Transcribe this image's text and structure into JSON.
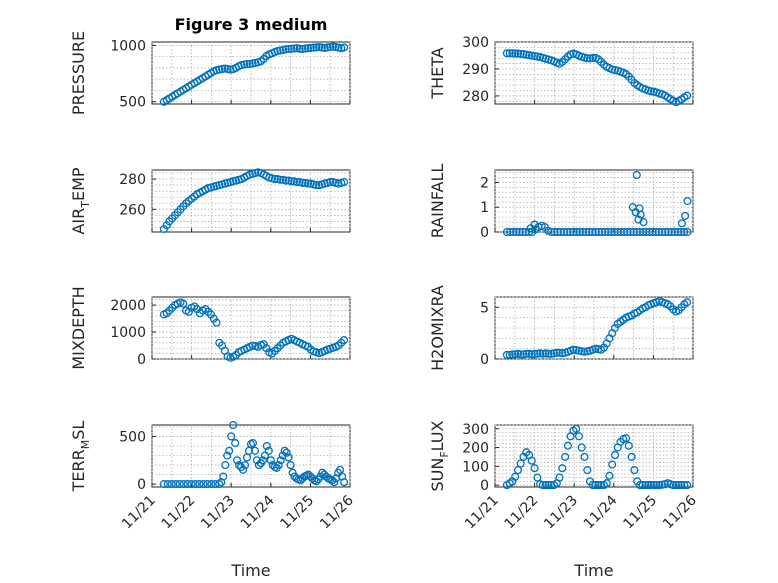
{
  "colors": {
    "marker": "#0072BD"
  },
  "xlabel": "Time",
  "x_ticks": [
    "11/21",
    "11/22",
    "11/23",
    "11/24",
    "11/25",
    "11/26"
  ],
  "chart_data": [
    {
      "type": "scatter",
      "title": "Figure 3 medium",
      "ylabel": "PRESSURE",
      "ylim": [
        480,
        1030
      ],
      "yticks": [
        500,
        1000
      ],
      "grid": true,
      "x": [
        0.3,
        0.37,
        0.44,
        0.51,
        0.58,
        0.65,
        0.72,
        0.79,
        0.86,
        0.93,
        1.0,
        1.07,
        1.14,
        1.21,
        1.28,
        1.35,
        1.42,
        1.49,
        1.56,
        1.63,
        1.7,
        1.77,
        1.84,
        1.91,
        1.98,
        2.05,
        2.12,
        2.19,
        2.26,
        2.33,
        2.4,
        2.47,
        2.54,
        2.61,
        2.68,
        2.75,
        2.82,
        2.89,
        2.96,
        3.03,
        3.1,
        3.17,
        3.24,
        3.31,
        3.38,
        3.45,
        3.52,
        3.59,
        3.66,
        3.73,
        3.8,
        3.87,
        3.94,
        4.01,
        4.08,
        4.15,
        4.22,
        4.29,
        4.36,
        4.43,
        4.5,
        4.57,
        4.64,
        4.71,
        4.78,
        4.85
      ],
      "y": [
        500,
        515,
        530,
        545,
        560,
        575,
        590,
        605,
        620,
        635,
        650,
        665,
        680,
        695,
        710,
        725,
        740,
        755,
        770,
        780,
        785,
        790,
        795,
        790,
        785,
        790,
        800,
        815,
        825,
        830,
        835,
        835,
        840,
        845,
        850,
        860,
        880,
        905,
        920,
        930,
        940,
        950,
        955,
        960,
        965,
        968,
        970,
        972,
        975,
        970,
        968,
        972,
        975,
        978,
        980,
        982,
        985,
        980,
        978,
        982,
        986,
        990,
        985,
        980,
        975,
        982
      ]
    },
    {
      "type": "scatter",
      "ylabel": "THETA",
      "ylim": [
        277,
        300
      ],
      "yticks": [
        280,
        290,
        300
      ],
      "grid": true,
      "x": [
        0.3,
        0.37,
        0.44,
        0.51,
        0.58,
        0.65,
        0.72,
        0.79,
        0.86,
        0.93,
        1.0,
        1.07,
        1.14,
        1.21,
        1.28,
        1.35,
        1.42,
        1.49,
        1.56,
        1.63,
        1.7,
        1.77,
        1.84,
        1.91,
        1.98,
        2.05,
        2.12,
        2.19,
        2.26,
        2.33,
        2.4,
        2.47,
        2.54,
        2.61,
        2.68,
        2.75,
        2.82,
        2.89,
        2.96,
        3.03,
        3.1,
        3.17,
        3.24,
        3.31,
        3.38,
        3.45,
        3.52,
        3.59,
        3.66,
        3.73,
        3.8,
        3.87,
        3.94,
        4.01,
        4.08,
        4.15,
        4.22,
        4.29,
        4.36,
        4.43,
        4.5,
        4.57,
        4.64,
        4.71,
        4.78,
        4.85
      ],
      "y": [
        295.8,
        295.8,
        295.8,
        295.7,
        295.7,
        295.6,
        295.5,
        295.3,
        295.1,
        294.9,
        294.8,
        294.6,
        294.4,
        294.1,
        293.8,
        293.5,
        293.2,
        292.8,
        292.3,
        291.9,
        292.6,
        293.6,
        294.6,
        295.4,
        295.7,
        295.4,
        294.9,
        294.5,
        294.2,
        294.0,
        293.9,
        294.1,
        294.1,
        293.6,
        292.6,
        291.6,
        290.8,
        290.3,
        289.8,
        289.6,
        289.3,
        289.0,
        288.6,
        288.1,
        287.2,
        286.0,
        284.8,
        284.0,
        283.3,
        282.8,
        282.4,
        282.0,
        281.7,
        281.6,
        281.3,
        280.9,
        280.6,
        280.2,
        279.5,
        278.8,
        278.2,
        277.7,
        278.1,
        278.7,
        279.5,
        280.1
      ]
    },
    {
      "type": "scatter",
      "ylabel": "AIR_TEMP",
      "ylim": [
        245,
        286
      ],
      "yticks": [
        260,
        280
      ],
      "grid": true,
      "x": [
        0.3,
        0.37,
        0.44,
        0.51,
        0.58,
        0.65,
        0.72,
        0.79,
        0.86,
        0.93,
        1.0,
        1.07,
        1.14,
        1.21,
        1.28,
        1.35,
        1.42,
        1.49,
        1.56,
        1.63,
        1.7,
        1.77,
        1.84,
        1.91,
        1.98,
        2.05,
        2.12,
        2.19,
        2.26,
        2.33,
        2.4,
        2.47,
        2.54,
        2.61,
        2.68,
        2.75,
        2.82,
        2.89,
        2.96,
        3.03,
        3.1,
        3.17,
        3.24,
        3.31,
        3.38,
        3.45,
        3.52,
        3.59,
        3.66,
        3.73,
        3.8,
        3.87,
        3.94,
        4.01,
        4.08,
        4.15,
        4.22,
        4.29,
        4.36,
        4.43,
        4.5,
        4.57,
        4.64,
        4.71,
        4.78,
        4.85
      ],
      "y": [
        247,
        249.5,
        252,
        254,
        256,
        258,
        260,
        262,
        264,
        265.5,
        267,
        268.5,
        270,
        271,
        272,
        273,
        274,
        274.5,
        275,
        275.5,
        276,
        276.5,
        277,
        277.5,
        278,
        278.5,
        279,
        279.5,
        280,
        281,
        282,
        283,
        283.5,
        284,
        284.5,
        284,
        283,
        282,
        281,
        280.5,
        280,
        280,
        279.5,
        279.5,
        279,
        279,
        278.5,
        278.5,
        278,
        278,
        277.5,
        277.5,
        277,
        277,
        276.5,
        276,
        276,
        276.5,
        277,
        277.5,
        278,
        278,
        277.5,
        277,
        277.5,
        278
      ]
    },
    {
      "type": "scatter",
      "ylabel": "RAINFALL",
      "ylim": [
        0,
        2.5
      ],
      "yticks": [
        0,
        1,
        2
      ],
      "grid": true,
      "x": [
        0.3,
        0.38,
        0.46,
        0.54,
        0.62,
        0.7,
        0.78,
        0.86,
        0.94,
        1.02,
        1.1,
        1.18,
        1.26,
        1.34,
        1.42,
        1.5,
        1.58,
        1.66,
        1.74,
        1.82,
        1.9,
        1.98,
        2.06,
        2.14,
        2.22,
        2.3,
        2.38,
        2.46,
        2.54,
        2.62,
        2.7,
        2.78,
        2.86,
        2.94,
        3.02,
        3.1,
        3.18,
        3.26,
        3.34,
        3.42,
        3.5,
        3.58,
        3.66,
        3.74,
        3.82,
        3.9,
        3.98,
        4.06,
        4.14,
        4.22,
        4.3,
        4.38,
        4.46,
        4.54,
        4.62,
        4.7,
        4.78,
        4.86,
        0.9,
        1.0,
        1.1,
        3.48,
        3.55,
        3.62,
        3.68,
        3.75,
        3.58,
        3.65,
        4.72,
        4.8,
        4.86
      ],
      "y": [
        0,
        0,
        0,
        0,
        0,
        0,
        0,
        0,
        0,
        0.1,
        0.2,
        0.25,
        0.2,
        0.05,
        0,
        0,
        0,
        0,
        0,
        0,
        0,
        0,
        0,
        0,
        0,
        0,
        0,
        0,
        0,
        0,
        0,
        0,
        0,
        0,
        0,
        0,
        0,
        0,
        0,
        0,
        0,
        0,
        0,
        0,
        0,
        0,
        0,
        0,
        0,
        0,
        0,
        0,
        0,
        0,
        0,
        0,
        0,
        0,
        0.15,
        0.3,
        0.2,
        1.0,
        0.8,
        0.5,
        0.7,
        0.4,
        2.3,
        0.95,
        0.35,
        0.65,
        1.25
      ]
    },
    {
      "type": "scatter",
      "ylabel": "MIXDEPTH",
      "ylim": [
        0,
        2300
      ],
      "yticks": [
        0,
        1000,
        2000
      ],
      "grid": true,
      "x": [
        0.3,
        0.37,
        0.44,
        0.51,
        0.58,
        0.65,
        0.72,
        0.79,
        0.86,
        0.93,
        1.0,
        1.07,
        1.14,
        1.21,
        1.28,
        1.35,
        1.42,
        1.49,
        1.56,
        1.63,
        1.7,
        1.77,
        1.84,
        1.91,
        1.98,
        2.05,
        2.12,
        2.19,
        2.26,
        2.33,
        2.4,
        2.47,
        2.54,
        2.61,
        2.68,
        2.75,
        2.82,
        2.89,
        2.96,
        3.03,
        3.1,
        3.17,
        3.24,
        3.31,
        3.38,
        3.45,
        3.52,
        3.59,
        3.66,
        3.73,
        3.8,
        3.87,
        3.94,
        4.01,
        4.08,
        4.15,
        4.22,
        4.29,
        4.36,
        4.43,
        4.5,
        4.57,
        4.64,
        4.71,
        4.78,
        4.85
      ],
      "y": [
        1650,
        1700,
        1800,
        1900,
        2000,
        2050,
        2100,
        2050,
        1800,
        1750,
        1900,
        1950,
        1850,
        1700,
        1800,
        1850,
        1750,
        1650,
        1500,
        1350,
        600,
        500,
        300,
        100,
        50,
        80,
        150,
        250,
        300,
        350,
        400,
        450,
        500,
        480,
        450,
        520,
        550,
        400,
        250,
        200,
        300,
        400,
        500,
        600,
        650,
        700,
        750,
        700,
        650,
        600,
        550,
        500,
        450,
        350,
        280,
        250,
        220,
        250,
        300,
        350,
        380,
        420,
        450,
        500,
        600,
        700
      ]
    },
    {
      "type": "scatter",
      "ylabel": "H2OMIXRA",
      "ylim": [
        0,
        6
      ],
      "yticks": [
        0,
        5
      ],
      "grid": true,
      "x": [
        0.3,
        0.37,
        0.44,
        0.51,
        0.58,
        0.65,
        0.72,
        0.79,
        0.86,
        0.93,
        1.0,
        1.07,
        1.14,
        1.21,
        1.28,
        1.35,
        1.42,
        1.49,
        1.56,
        1.63,
        1.7,
        1.77,
        1.84,
        1.91,
        1.98,
        2.05,
        2.12,
        2.19,
        2.26,
        2.33,
        2.4,
        2.47,
        2.54,
        2.61,
        2.68,
        2.75,
        2.82,
        2.89,
        2.96,
        3.03,
        3.1,
        3.17,
        3.24,
        3.31,
        3.38,
        3.45,
        3.52,
        3.59,
        3.66,
        3.73,
        3.8,
        3.87,
        3.94,
        4.01,
        4.08,
        4.15,
        4.22,
        4.29,
        4.36,
        4.43,
        4.5,
        4.57,
        4.64,
        4.71,
        4.78,
        4.85
      ],
      "y": [
        0.4,
        0.4,
        0.45,
        0.45,
        0.5,
        0.45,
        0.45,
        0.5,
        0.5,
        0.45,
        0.5,
        0.5,
        0.55,
        0.5,
        0.55,
        0.5,
        0.5,
        0.55,
        0.6,
        0.6,
        0.55,
        0.6,
        0.7,
        0.8,
        0.9,
        0.85,
        0.8,
        0.75,
        0.7,
        0.75,
        0.8,
        0.9,
        1.0,
        0.95,
        0.9,
        1.1,
        1.5,
        2.0,
        2.5,
        3.0,
        3.4,
        3.6,
        3.8,
        4.0,
        4.1,
        4.2,
        4.4,
        4.5,
        4.7,
        4.9,
        5.0,
        5.2,
        5.3,
        5.4,
        5.5,
        5.6,
        5.5,
        5.4,
        5.3,
        5.1,
        4.8,
        4.6,
        4.7,
        5.0,
        5.3,
        5.5
      ]
    },
    {
      "type": "scatter",
      "ylabel": "TERR_MSL",
      "ylim": [
        -30,
        620
      ],
      "yticks": [
        0,
        500
      ],
      "grid": true,
      "x": [
        0.3,
        0.4,
        0.5,
        0.6,
        0.7,
        0.8,
        0.9,
        1.0,
        1.1,
        1.2,
        1.3,
        1.4,
        1.5,
        1.6,
        1.7,
        1.75,
        1.8,
        1.85,
        1.9,
        1.95,
        2.0,
        2.05,
        2.1,
        2.15,
        2.2,
        2.25,
        2.3,
        2.35,
        2.4,
        2.45,
        2.5,
        2.55,
        2.6,
        2.65,
        2.7,
        2.75,
        2.8,
        2.85,
        2.9,
        2.95,
        3.0,
        3.05,
        3.1,
        3.15,
        3.2,
        3.25,
        3.3,
        3.35,
        3.4,
        3.45,
        3.5,
        3.55,
        3.6,
        3.65,
        3.7,
        3.75,
        3.8,
        3.85,
        3.9,
        3.95,
        4.0,
        4.05,
        4.1,
        4.15,
        4.2,
        4.25,
        4.3,
        4.35,
        4.4,
        4.45,
        4.5,
        4.55,
        4.6,
        4.65,
        4.7,
        4.75,
        4.8,
        4.85
      ],
      "y": [
        0,
        0,
        0,
        0,
        0,
        0,
        0,
        0,
        0,
        0,
        0,
        0,
        0,
        0,
        0,
        20,
        80,
        200,
        300,
        350,
        500,
        620,
        430,
        250,
        200,
        180,
        150,
        200,
        280,
        350,
        420,
        430,
        350,
        250,
        200,
        220,
        250,
        300,
        400,
        350,
        250,
        200,
        180,
        170,
        200,
        250,
        300,
        350,
        330,
        280,
        200,
        120,
        80,
        60,
        50,
        40,
        60,
        80,
        90,
        100,
        80,
        60,
        40,
        30,
        50,
        80,
        120,
        100,
        80,
        60,
        50,
        40,
        20,
        60,
        120,
        150,
        80,
        20
      ]
    },
    {
      "type": "scatter",
      "ylabel": "SUN_FLUX",
      "ylim": [
        -10,
        320
      ],
      "yticks": [
        0,
        100,
        200,
        300
      ],
      "grid": true,
      "x": [
        0.3,
        0.37,
        0.44,
        0.51,
        0.58,
        0.65,
        0.72,
        0.79,
        0.86,
        0.93,
        1.0,
        1.07,
        1.14,
        1.21,
        1.28,
        1.35,
        1.42,
        1.49,
        1.56,
        1.63,
        1.7,
        1.77,
        1.84,
        1.91,
        1.98,
        2.05,
        2.12,
        2.19,
        2.26,
        2.33,
        2.4,
        2.47,
        2.54,
        2.61,
        2.68,
        2.75,
        2.82,
        2.89,
        2.96,
        3.03,
        3.1,
        3.17,
        3.24,
        3.31,
        3.38,
        3.45,
        3.52,
        3.59,
        3.66,
        3.73,
        3.8,
        3.87,
        3.94,
        4.01,
        4.08,
        4.15,
        4.22,
        4.29,
        4.36,
        4.43,
        4.5,
        4.57,
        4.64,
        4.71,
        4.78,
        4.85
      ],
      "y": [
        0,
        10,
        20,
        45,
        80,
        115,
        150,
        175,
        160,
        130,
        90,
        40,
        5,
        0,
        0,
        0,
        0,
        0,
        10,
        40,
        90,
        150,
        210,
        260,
        290,
        300,
        260,
        200,
        150,
        80,
        20,
        0,
        0,
        0,
        0,
        0,
        10,
        50,
        110,
        160,
        200,
        230,
        245,
        250,
        210,
        150,
        80,
        20,
        0,
        0,
        0,
        0,
        0,
        0,
        0,
        0,
        2,
        5,
        10,
        5,
        0,
        0,
        0,
        0,
        0,
        0
      ]
    }
  ]
}
